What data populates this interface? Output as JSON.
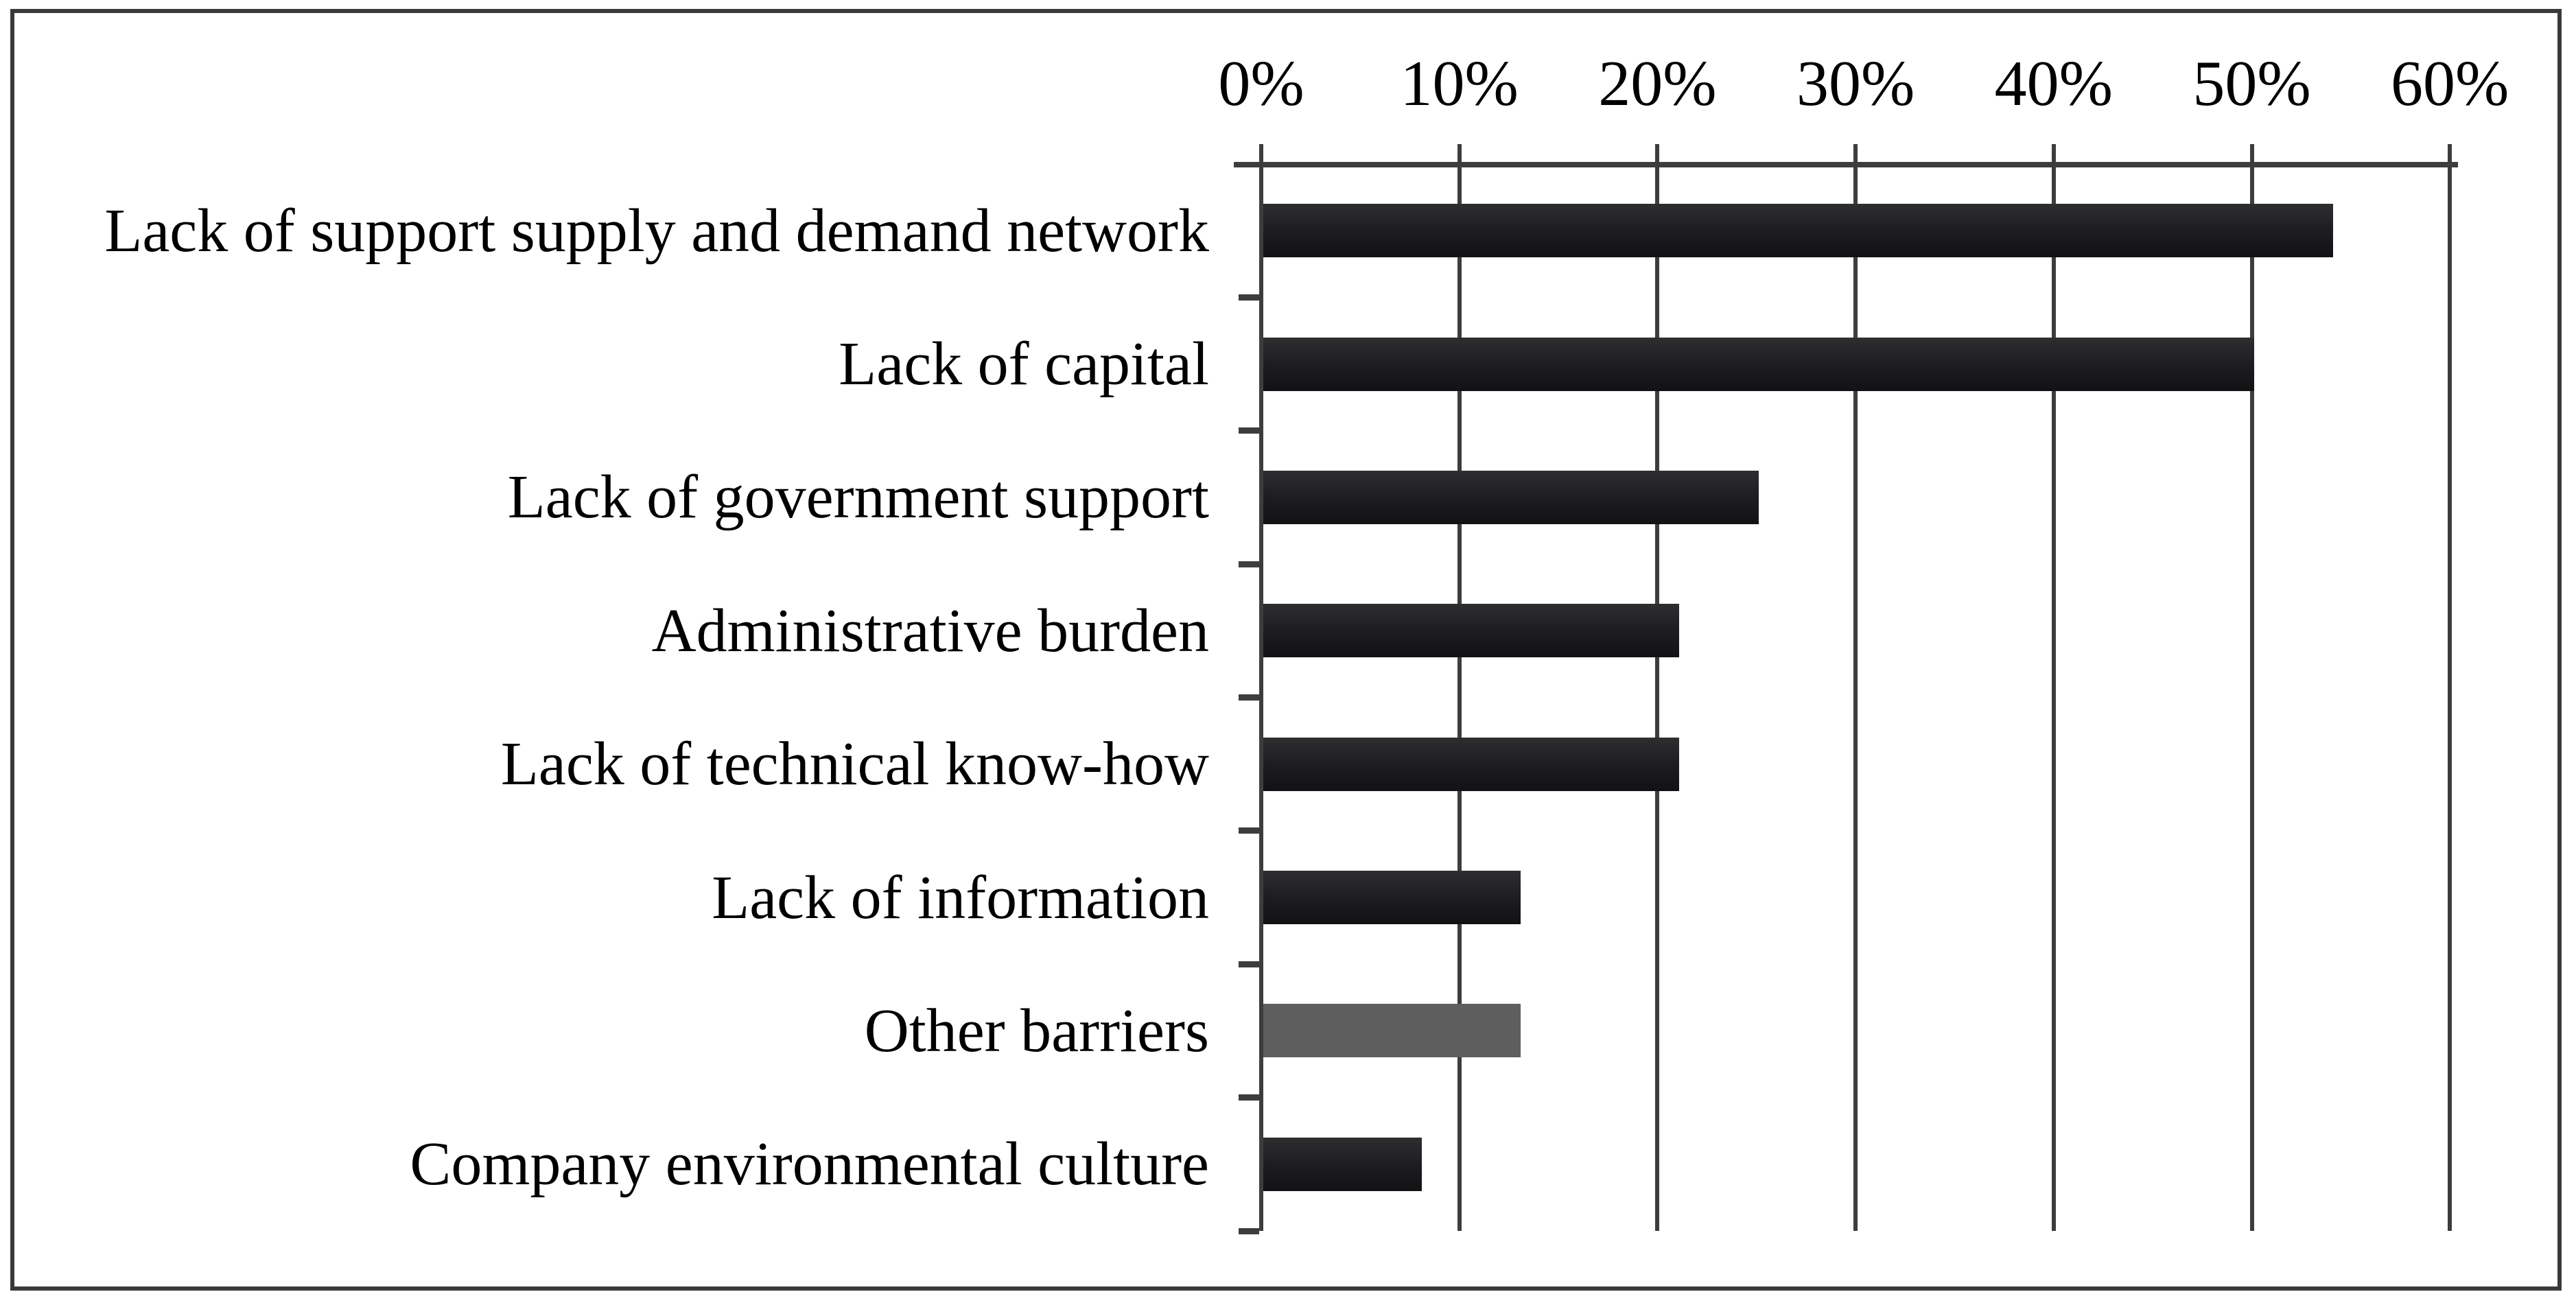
{
  "chart_data": {
    "type": "bar",
    "orientation": "horizontal",
    "title": "",
    "xlabel": "",
    "ylabel": "",
    "categories": [
      "Lack of support supply and demand network",
      "Lack of capital",
      "Lack of government support",
      "Administrative burden",
      "Lack of technical know-how",
      "Lack of information",
      "Other barriers",
      "Company environmental culture"
    ],
    "values": [
      54,
      50,
      25,
      21,
      21,
      13,
      13,
      8
    ],
    "unit": "%",
    "bar_styles": [
      "dark",
      "dark",
      "dark",
      "dark",
      "dark",
      "dark",
      "gray",
      "dark"
    ],
    "x_ticks": [
      "0%",
      "10%",
      "20%",
      "30%",
      "40%",
      "50%",
      "60%"
    ],
    "x_tick_values": [
      0,
      10,
      20,
      30,
      40,
      50,
      60
    ],
    "xlim": [
      0,
      60
    ],
    "grid": true,
    "legend": false,
    "axis_position": "top",
    "colors": {
      "bar_dark_top": "#2e2e30",
      "bar_dark_mid": "#1c1c1e",
      "bar_dark_bottom": "#121214",
      "bar_gray": "#5e5e5e",
      "axis_line": "#3d3d3d",
      "frame_border": "#3a3a3a",
      "text": "#000000",
      "background": "#ffffff"
    }
  }
}
